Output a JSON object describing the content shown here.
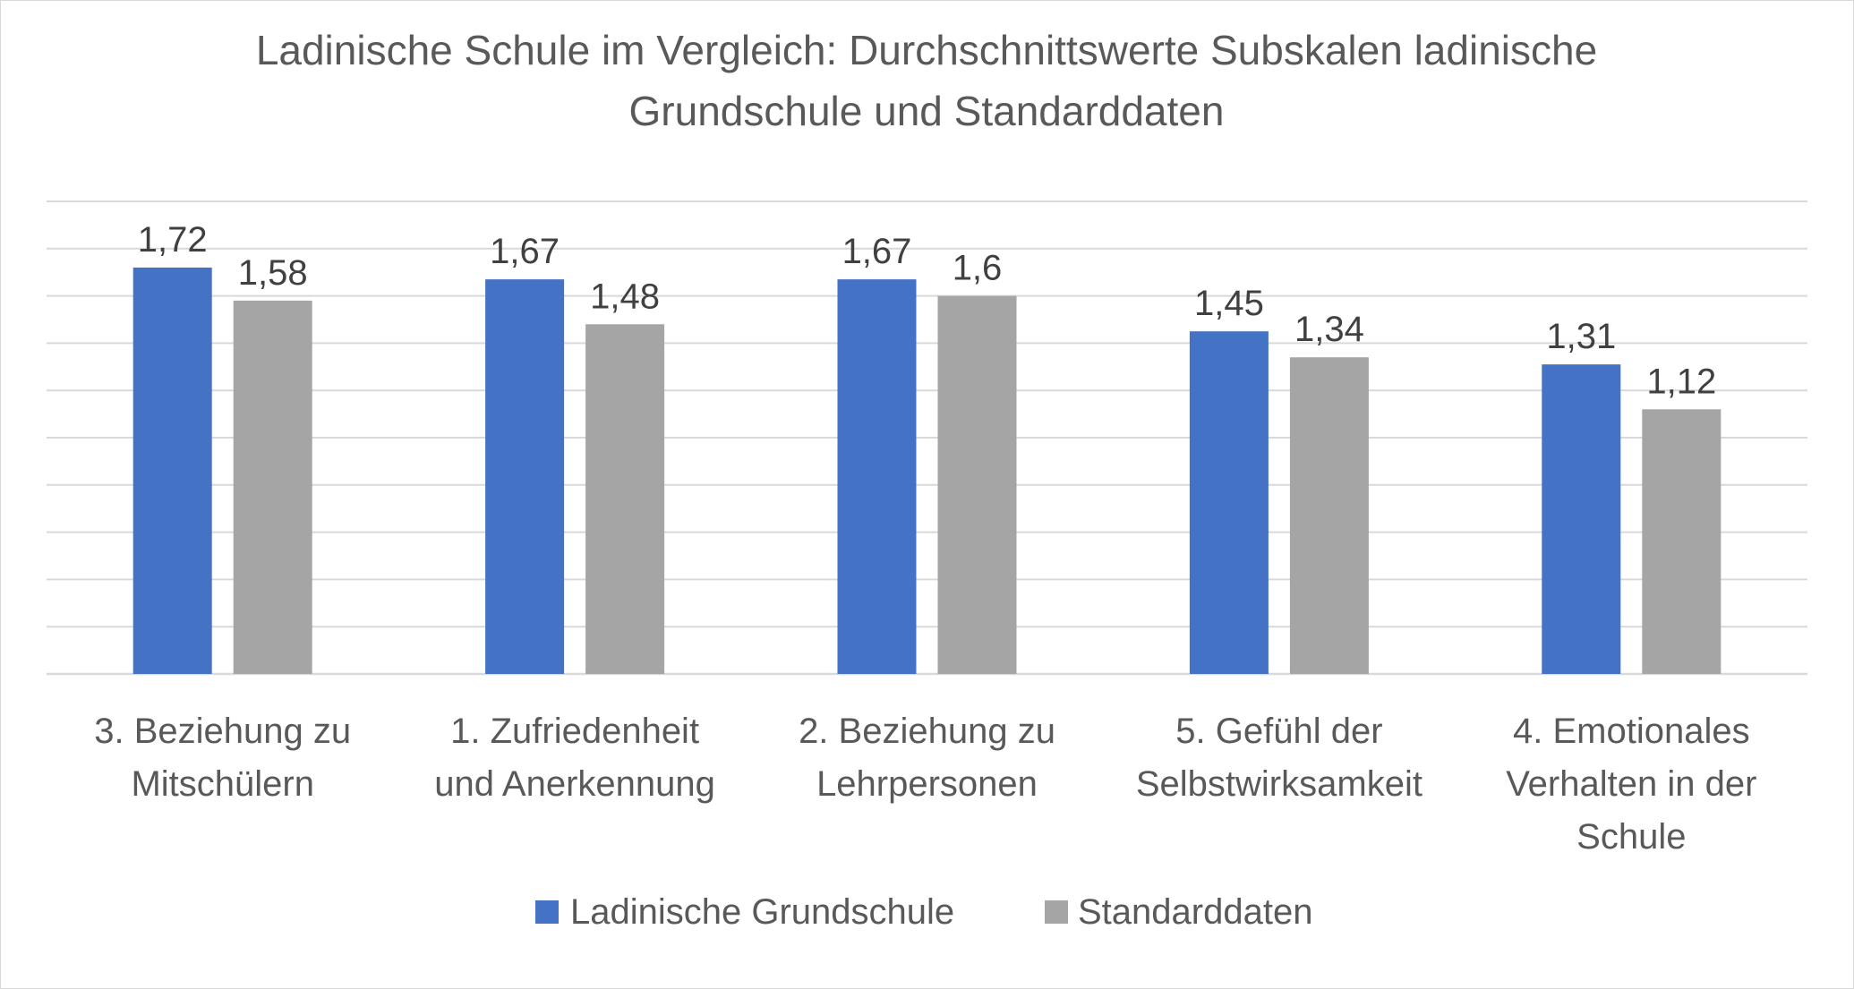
{
  "chart_data": {
    "type": "bar",
    "title_lines": [
      "Ladinische Schule im Vergleich: Durchschnittswerte Subskalen ladinische",
      "Grundschule und Standarddaten"
    ],
    "categories": [
      [
        "3. Beziehung zu",
        "Mitschülern"
      ],
      [
        "1. Zufriedenheit",
        "und Anerkennung"
      ],
      [
        "2. Beziehung zu",
        "Lehrpersonen"
      ],
      [
        "5. Gefühl der",
        "Selbstwirksamkeit"
      ],
      [
        "4. Emotionales",
        "Verhalten in der",
        "Schule"
      ]
    ],
    "series": [
      {
        "name": "Ladinische Grundschule",
        "color": "#4472c4",
        "values": [
          1.72,
          1.67,
          1.67,
          1.45,
          1.31
        ],
        "labels": [
          "1,72",
          "1,67",
          "1,67",
          "1,45",
          "1,31"
        ]
      },
      {
        "name": "Standarddaten",
        "color": "#a5a5a5",
        "values": [
          1.58,
          1.48,
          1.6,
          1.34,
          1.12
        ],
        "labels": [
          "1,58",
          "1,48",
          "1,6",
          "1,34",
          "1,12"
        ]
      }
    ],
    "ylim": [
      0,
      2.0
    ],
    "grid": true,
    "legend_position": "bottom"
  }
}
